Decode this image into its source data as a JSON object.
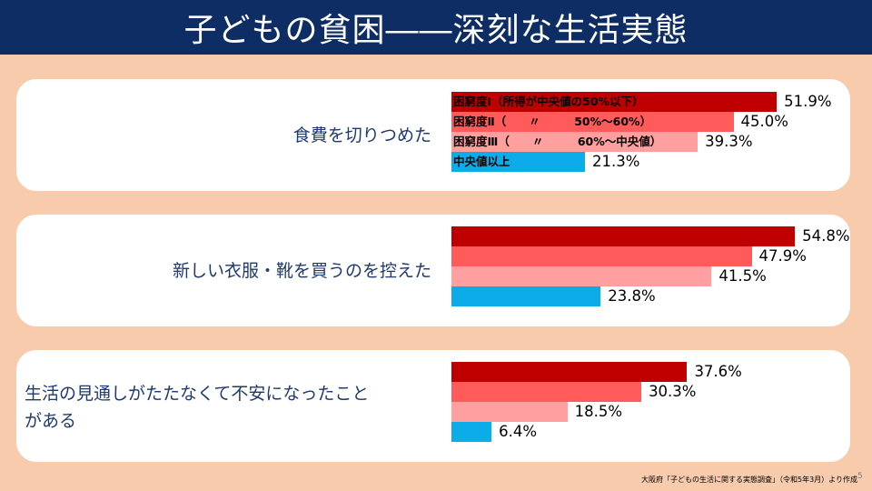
{
  "title": "子どもの貧困――深刻な生活実態",
  "chart_data": {
    "type": "bar",
    "orientation": "horizontal",
    "title": "子どもの貧困――深刻な生活実態",
    "series": [
      {
        "name": "困窮度Ⅰ（所得が中央値の50%以下）",
        "short": "困窮度Ⅰ",
        "color": "#c00000",
        "values": [
          51.9,
          54.8,
          37.6
        ]
      },
      {
        "name": "困窮度Ⅱ（　〃　50%～60%）",
        "short": "困窮度Ⅱ",
        "color": "#ff5b5b",
        "values": [
          45.0,
          47.9,
          30.3
        ]
      },
      {
        "name": "困窮度Ⅲ（　〃　60%～中央値）",
        "short": "困窮度Ⅲ",
        "color": "#ff9f9f",
        "values": [
          39.3,
          41.5,
          18.5
        ]
      },
      {
        "name": "中央値以上",
        "short": "中央値以上",
        "color": "#0bace8",
        "values": [
          21.3,
          23.8,
          6.4
        ]
      }
    ],
    "categories": [
      "食費を切りつめた",
      "新しい衣服・靴を買うのを控えた",
      "生活の見通しがたたなくて不安になったことがある"
    ],
    "category_lines": [
      [
        "食費を切りつめた"
      ],
      [
        "新しい衣服・靴を買うのを控えた"
      ],
      [
        "生活の見通しがたたなくて不安になったこと",
        "がある"
      ]
    ],
    "value_labels": [
      [
        "51.9%",
        "45.0%",
        "39.3%",
        "21.3%"
      ],
      [
        "54.8%",
        "47.9%",
        "41.5%",
        "23.8%"
      ],
      [
        "37.6%",
        "30.3%",
        "18.5%",
        "6.4%"
      ]
    ],
    "unit": "%",
    "xlim": [
      0,
      65
    ]
  },
  "legend_labels": [
    "困窮度Ⅰ（所得が中央値の50%以下）",
    "困窮度Ⅱ（　　〃　　　50%～60%）",
    "困窮度Ⅲ（　　〃　　　60%～中央値）",
    "中央値以上"
  ],
  "source": "大阪府「子どもの生活に関する実態調査」（令和5年3月）より作成",
  "page_number": "5"
}
